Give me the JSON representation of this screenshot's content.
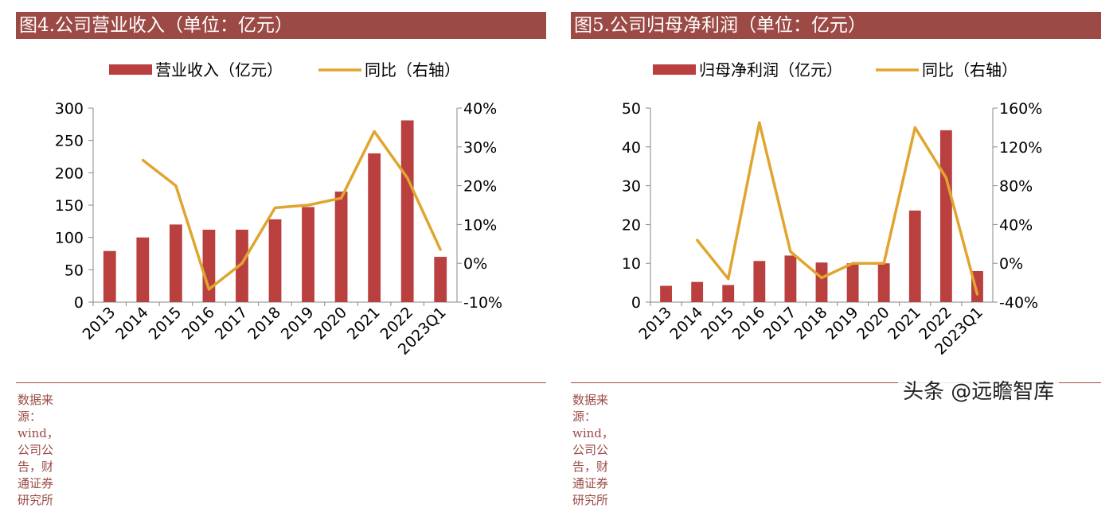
{
  "colors": {
    "bar": "#b9403f",
    "line": "#e0a52f",
    "title_bg": "#9c4a45"
  },
  "chart_data": [
    {
      "type": "bar",
      "title": "图4.公司营业收入（单位：亿元）",
      "source": "数据来源：wind，公司公告，财通证券研究所",
      "legend": {
        "bar_label": "营业收入（亿元）",
        "line_label": "同比（右轴）",
        "placement": "top"
      },
      "categories": [
        "2013",
        "2014",
        "2015",
        "2016",
        "2017",
        "2018",
        "2019",
        "2020",
        "2021",
        "2022",
        "2023Q1"
      ],
      "series": [
        {
          "name": "营业收入（亿元）",
          "axis": "left",
          "type": "bar",
          "values": [
            79,
            100,
            120,
            112,
            112,
            128,
            147,
            171,
            230,
            281,
            70
          ]
        },
        {
          "name": "同比（右轴）",
          "axis": "right",
          "type": "line",
          "values": [
            null,
            26.6,
            20.0,
            -6.7,
            0.0,
            14.3,
            15.0,
            16.8,
            34.0,
            22.0,
            3.5
          ]
        }
      ],
      "ylim_left": [
        0,
        300
      ],
      "yticks_left": [
        "0",
        "50",
        "100",
        "150",
        "200",
        "250",
        "300"
      ],
      "ylim_right": [
        -10,
        40
      ],
      "yticks_right": [
        "-10%",
        "0%",
        "10%",
        "20%",
        "30%",
        "40%"
      ]
    },
    {
      "type": "bar",
      "title": "图5.公司归母净利润（单位：亿元）",
      "source": "数据来源：wind，公司公告，财通证券研究所",
      "legend": {
        "bar_label": "归母净利润（亿元）",
        "line_label": "同比（右轴）",
        "placement": "top"
      },
      "categories": [
        "2013",
        "2014",
        "2015",
        "2016",
        "2017",
        "2018",
        "2019",
        "2020",
        "2021",
        "2022",
        "2023Q1"
      ],
      "series": [
        {
          "name": "归母净利润（亿元）",
          "axis": "left",
          "type": "bar",
          "values": [
            4.2,
            5.2,
            4.4,
            10.6,
            12.0,
            10.2,
            10.0,
            10.0,
            23.6,
            44.3,
            8.0
          ]
        },
        {
          "name": "同比（右轴）",
          "axis": "right",
          "type": "line",
          "values": [
            null,
            24,
            -16,
            145,
            12,
            -15,
            0,
            0,
            140,
            88,
            -32
          ]
        }
      ],
      "ylim_left": [
        0,
        50
      ],
      "yticks_left": [
        "0",
        "10",
        "20",
        "30",
        "40",
        "50"
      ],
      "ylim_right": [
        -40,
        160
      ],
      "yticks_right": [
        "-40%",
        "0%",
        "40%",
        "80%",
        "120%",
        "160%"
      ]
    }
  ],
  "watermark": "头条 @远瞻智库"
}
